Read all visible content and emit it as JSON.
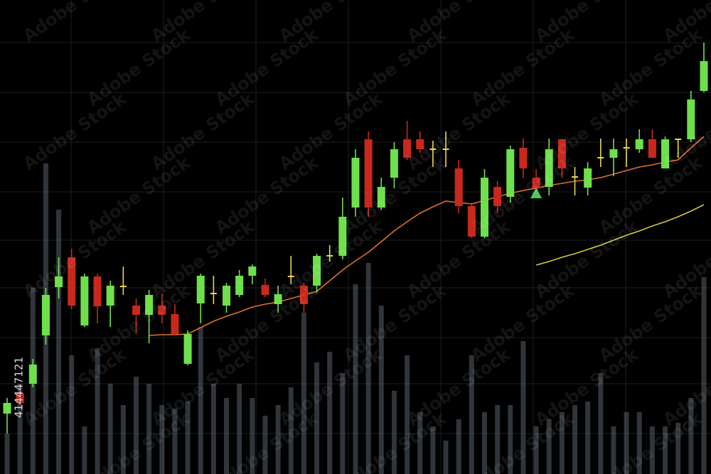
{
  "chart_data": {
    "type": "candlestick",
    "categories": [
      null,
      null,
      null,
      null,
      null,
      null,
      null,
      null,
      null,
      null,
      null,
      null,
      null,
      null,
      null,
      null,
      null,
      null,
      null,
      null,
      null,
      null,
      null,
      null,
      null,
      null,
      null,
      null,
      null,
      null,
      null,
      null,
      null,
      null,
      null,
      null,
      null,
      null,
      null,
      null,
      null,
      null,
      null,
      null,
      null,
      null,
      null,
      null,
      null,
      null,
      null,
      null,
      null,
      null,
      null
    ],
    "open": [
      8.5,
      11.4,
      12.7,
      19.5,
      26.3,
      30.5,
      20.9,
      27.8,
      23.7,
      26.4,
      23.7,
      22.4,
      23.7,
      22.5,
      15.5,
      24.0,
      25.4,
      23.7,
      25.2,
      27.9,
      26.6,
      23.9,
      27.8,
      26.5,
      26.5,
      30.7,
      30.7,
      37.5,
      47.1,
      37.5,
      41.7,
      47.1,
      47.1,
      45.7,
      45.7,
      43.0,
      37.7,
      33.4,
      40.4,
      39.0,
      45.9,
      41.7,
      40.4,
      47.1,
      41.8,
      40.3,
      44.5,
      44.5,
      45.9,
      45.7,
      47.1,
      43.0,
      47.1,
      47.1,
      53.9
    ],
    "close": [
      10.0,
      10.0,
      15.4,
      25.2,
      27.8,
      23.7,
      27.8,
      23.6,
      26.5,
      26.4,
      22.4,
      25.2,
      22.4,
      19.7,
      19.7,
      27.9,
      25.4,
      26.5,
      27.9,
      29.2,
      25.2,
      25.3,
      27.8,
      23.9,
      30.7,
      30.7,
      36.2,
      44.5,
      37.5,
      40.4,
      45.7,
      44.5,
      45.7,
      45.7,
      45.7,
      37.7,
      33.4,
      41.7,
      37.7,
      45.7,
      43.0,
      40.2,
      45.7,
      43.0,
      41.8,
      43.0,
      44.5,
      45.7,
      45.9,
      47.1,
      44.5,
      47.1,
      47.1,
      52.7,
      58.1
    ],
    "high": [
      10.7,
      11.9,
      16.2,
      26.2,
      30.5,
      31.7,
      28.2,
      28.2,
      27.2,
      29.2,
      24.7,
      25.9,
      25.4,
      23.9,
      20.2,
      28.2,
      27.9,
      26.9,
      28.7,
      29.5,
      27.5,
      26.5,
      30.7,
      26.9,
      31.0,
      32.2,
      38.9,
      45.7,
      48.2,
      41.7,
      46.7,
      49.7,
      48.2,
      46.9,
      48.2,
      44.2,
      38.2,
      42.9,
      41.2,
      46.2,
      47.2,
      42.9,
      47.2,
      47.2,
      43.2,
      43.9,
      47.2,
      47.2,
      47.2,
      48.5,
      48.5,
      47.5,
      47.2,
      53.9,
      60.7
    ],
    "low": [
      5.7,
      9.7,
      12.2,
      18.2,
      24.7,
      23.2,
      20.7,
      21.2,
      20.7,
      25.2,
      19.7,
      18.4,
      21.2,
      19.5,
      15.3,
      21.2,
      23.9,
      22.7,
      24.9,
      26.7,
      24.9,
      22.7,
      26.7,
      22.7,
      25.5,
      29.9,
      30.2,
      36.2,
      36.2,
      37.2,
      40.2,
      44.2,
      45.2,
      43.2,
      43.2,
      36.7,
      33.2,
      33.2,
      36.7,
      38.2,
      41.7,
      39.7,
      39.2,
      41.7,
      39.2,
      39.2,
      43.2,
      41.9,
      43.2,
      45.2,
      44.5,
      43.0,
      44.5,
      46.7,
      53.7
    ],
    "up_color": "#6ee04c",
    "down_color": "#c9281c",
    "doji_color": "#e8d84a",
    "volume": {
      "color": "#5d6a74",
      "values": [
        5.7,
        12.7,
        26.2,
        43.7,
        37.2,
        16.7,
        6.7,
        17.7,
        12.7,
        9.7,
        13.7,
        12.7,
        9.7,
        9.2,
        10.2,
        20.7,
        12.7,
        10.7,
        12.7,
        10.7,
        8.2,
        9.7,
        12.2,
        22.7,
        15.7,
        17.2,
        14.2,
        26.7,
        29.7,
        23.7,
        11.7,
        16.7,
        8.7,
        6.7,
        4.7,
        7.7,
        16.7,
        8.7,
        9.7,
        9.7,
        18.7,
        6.7,
        7.7,
        8.7,
        9.7,
        10.2,
        14.2,
        6.7,
        8.7,
        8.7,
        6.7,
        6.7,
        7.2,
        10.7,
        27.7
      ]
    },
    "lines": [
      {
        "color": "#e0702a",
        "values": [
          null,
          null,
          null,
          null,
          null,
          null,
          null,
          null,
          null,
          null,
          null,
          19.5,
          19.6,
          19.6,
          19.7,
          20.6,
          21.5,
          22.2,
          22.8,
          23.5,
          23.9,
          24.2,
          24.7,
          25.2,
          25.7,
          27.2,
          28.7,
          30.0,
          31.2,
          32.7,
          34.2,
          35.5,
          36.7,
          37.6,
          38.4,
          38.2,
          38.0,
          38.5,
          39.0,
          39.5,
          39.9,
          40.2,
          40.6,
          40.9,
          41.2,
          41.4,
          41.7,
          42.2,
          42.7,
          43.2,
          43.5,
          43.9,
          44.2,
          45.9,
          47.5
        ]
      },
      {
        "color": "#d8c63a",
        "values": [
          null,
          null,
          null,
          null,
          null,
          null,
          null,
          null,
          null,
          null,
          null,
          null,
          null,
          null,
          null,
          null,
          null,
          null,
          null,
          null,
          null,
          null,
          null,
          null,
          null,
          null,
          null,
          null,
          null,
          null,
          null,
          null,
          null,
          null,
          null,
          null,
          null,
          null,
          null,
          null,
          null,
          29.4,
          29.9,
          30.5,
          31.0,
          31.6,
          32.2,
          32.9,
          33.6,
          34.2,
          34.9,
          35.5,
          36.2,
          37.0,
          37.9
        ]
      }
    ],
    "markers": {
      "color": "#4cc85a",
      "values": [
        null,
        null,
        null,
        null,
        null,
        null,
        null,
        null,
        null,
        null,
        null,
        null,
        null,
        null,
        null,
        null,
        null,
        null,
        null,
        null,
        null,
        null,
        null,
        null,
        null,
        null,
        null,
        null,
        null,
        null,
        null,
        null,
        null,
        null,
        null,
        null,
        null,
        null,
        null,
        null,
        null,
        39.5,
        null,
        null,
        null,
        null,
        null,
        null,
        null,
        null,
        null,
        null,
        null,
        null,
        null
      ]
    },
    "ylim": [
      0,
      66.7
    ],
    "watermark": "Adobe Stock",
    "stock_id": "414447121"
  }
}
